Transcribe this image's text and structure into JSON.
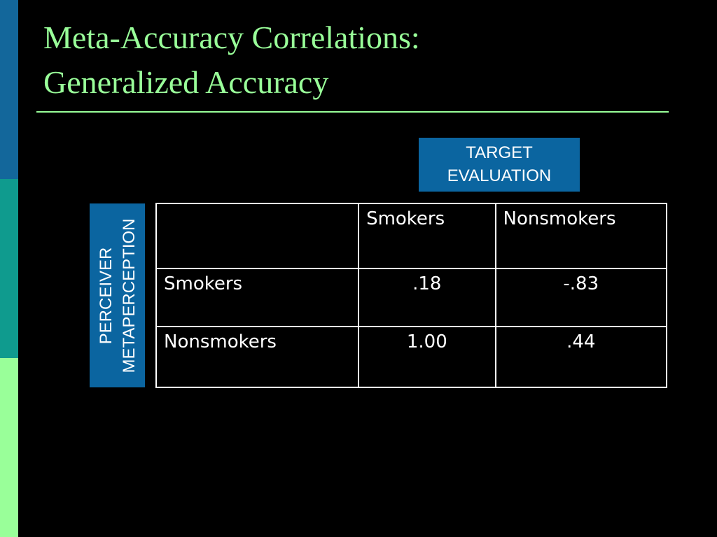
{
  "title": {
    "lines": [
      "Meta-Accuracy Correlations:",
      "Generalized Accuracy"
    ]
  },
  "column_label": {
    "lines": [
      "TARGET",
      "EVALUATION"
    ]
  },
  "row_label": {
    "lines": [
      "PERCEIVER",
      "METAPERCEPTION"
    ]
  },
  "table": {
    "header": [
      "Smokers",
      "Nonsmokers"
    ],
    "rows": [
      [
        "Smokers",
        ".18",
        "-.83"
      ],
      [
        "Nonsmokers",
        "1.00",
        ".44"
      ]
    ]
  }
}
